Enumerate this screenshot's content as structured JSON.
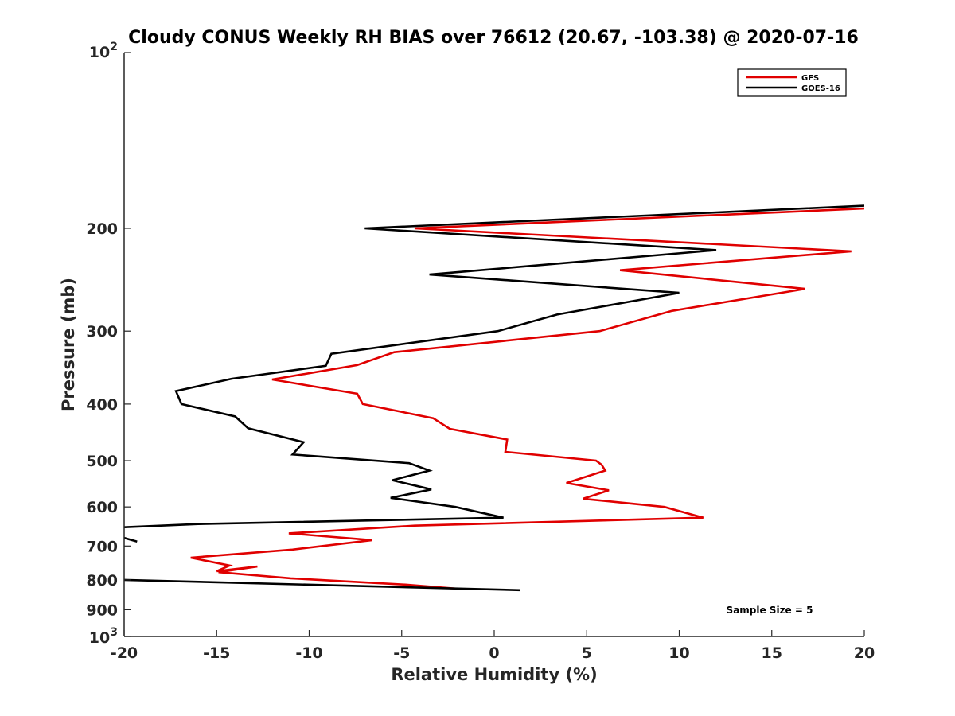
{
  "chart_data": {
    "type": "line",
    "title": "Cloudy CONUS Weekly RH BIAS over 76612 (20.67, -103.38) @ 2020-07-16",
    "xlabel": "Relative Humidity (%)",
    "ylabel": "Pressure (mb)",
    "xlim": [
      -20,
      20
    ],
    "ylim": [
      100,
      1000
    ],
    "yscale": "log",
    "y_reversed": true,
    "xticks": [
      -20,
      -15,
      -10,
      -5,
      0,
      5,
      10,
      15,
      20
    ],
    "xtick_labels": [
      "-20",
      "-15",
      "-10",
      "-5",
      "0",
      "5",
      "10",
      "15",
      "20"
    ],
    "yticks": [
      200,
      300,
      400,
      500,
      600,
      700,
      800,
      900
    ],
    "ytick_labels": [
      "200",
      "300",
      "400",
      "500",
      "600",
      "700",
      "800",
      "900"
    ],
    "ytick_min_label": {
      "base": "10",
      "exp": "2"
    },
    "ytick_max_label": {
      "base": "10",
      "exp": "3"
    },
    "legend_position": "top-right",
    "annotation": "Sample Size = 5",
    "series": [
      {
        "name": "GFS",
        "color": "#e00000",
        "points": [
          [
            20,
            185
          ],
          [
            -4.3,
            200
          ],
          [
            19.3,
            219
          ],
          [
            6.8,
            236
          ],
          [
            16.8,
            254
          ],
          [
            9.6,
            277
          ],
          [
            5.7,
            300
          ],
          [
            -5.4,
            326
          ],
          [
            -7.4,
            343
          ],
          [
            -12,
            363
          ],
          [
            -7.4,
            384
          ],
          [
            -7.1,
            400
          ],
          [
            -3.3,
            423
          ],
          [
            -2.4,
            441
          ],
          [
            0.7,
            460
          ],
          [
            0.6,
            483
          ],
          [
            5.5,
            500
          ],
          [
            5.8,
            508
          ],
          [
            6.0,
            520
          ],
          [
            3.9,
            546
          ],
          [
            6.2,
            562
          ],
          [
            4.8,
            581
          ],
          [
            9.2,
            600
          ],
          [
            11.3,
            626
          ],
          [
            -4.3,
            646
          ],
          [
            -11.1,
            666
          ],
          [
            -6.6,
            684
          ],
          [
            -10.9,
            710
          ],
          [
            -16.4,
            733
          ],
          [
            -14.3,
            756
          ],
          [
            -15,
            773
          ],
          [
            -12.8,
            759
          ],
          [
            -14.9,
            776
          ],
          [
            -11.0,
            795
          ],
          [
            -4.8,
            815
          ],
          [
            -1.7,
            830
          ]
        ]
      },
      {
        "name": "GOES-16",
        "color": "#000000",
        "points": [
          [
            20,
            183
          ],
          [
            -7,
            200
          ],
          [
            12,
            218
          ],
          [
            -3.5,
            240
          ],
          [
            10,
            258
          ],
          [
            3.4,
            281
          ],
          [
            0.2,
            300
          ],
          [
            -8.8,
            328
          ],
          [
            -9.1,
            344
          ],
          [
            -14.2,
            362
          ],
          [
            -17.2,
            380
          ],
          [
            -16.9,
            400
          ],
          [
            -14,
            420
          ],
          [
            -13.3,
            440
          ],
          [
            -10.3,
            465
          ],
          [
            -10.9,
            488
          ],
          [
            -4.6,
            505
          ],
          [
            -3.5,
            520
          ],
          [
            -5.5,
            540
          ],
          [
            -3.4,
            560
          ],
          [
            -5.6,
            579
          ],
          [
            -2.1,
            600
          ],
          [
            0.5,
            626
          ],
          [
            -16,
            642
          ],
          [
            -20,
            650
          ]
        ]
      },
      {
        "name": "GOES-16",
        "color": "#000000",
        "points": [
          [
            -20,
            678
          ],
          [
            -19.3,
            688
          ]
        ]
      },
      {
        "name": "GOES-16",
        "color": "#000000",
        "points": [
          [
            -20,
            800
          ],
          [
            1.4,
            833
          ]
        ]
      }
    ]
  }
}
